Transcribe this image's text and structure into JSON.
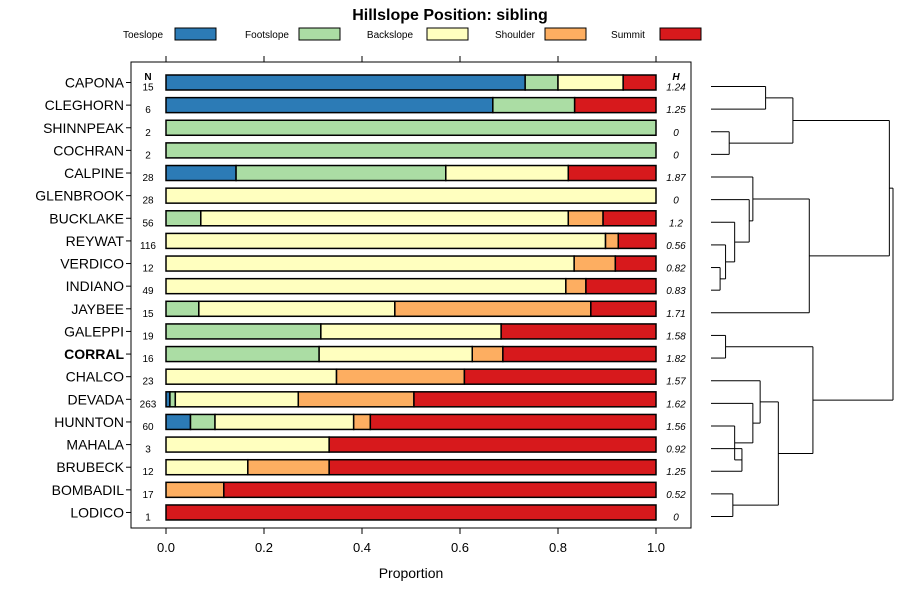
{
  "chart_data": {
    "type": "bar",
    "stacked": true,
    "orientation": "horizontal",
    "title": "Hillslope Position: sibling",
    "xlabel": "Proportion",
    "xlim": [
      0,
      1
    ],
    "xticks": [
      "0.0",
      "0.2",
      "0.4",
      "0.6",
      "0.8",
      "1.0"
    ],
    "n_header": "N",
    "h_header": "H",
    "highlight": "CORRAL",
    "legend": [
      {
        "name": "Toeslope",
        "color": "#2C7BB6"
      },
      {
        "name": "Footslope",
        "color": "#ABDDA4"
      },
      {
        "name": "Backslope",
        "color": "#FFFFBF"
      },
      {
        "name": "Shoulder",
        "color": "#FDAE61"
      },
      {
        "name": "Summit",
        "color": "#D7191C"
      }
    ],
    "categories": [
      {
        "name": "CAPONA",
        "n": "15",
        "h": "1.24",
        "values": [
          0.733,
          0.067,
          0.133,
          0,
          0.067
        ]
      },
      {
        "name": "CLEGHORN",
        "n": "6",
        "h": "1.25",
        "values": [
          0.667,
          0.167,
          0,
          0,
          0.166
        ]
      },
      {
        "name": "SHINNPEAK",
        "n": "2",
        "h": "0",
        "values": [
          0,
          1,
          0,
          0,
          0
        ]
      },
      {
        "name": "COCHRAN",
        "n": "2",
        "h": "0",
        "values": [
          0,
          1,
          0,
          0,
          0
        ]
      },
      {
        "name": "CALPINE",
        "n": "28",
        "h": "1.87",
        "values": [
          0.143,
          0.428,
          0.25,
          0,
          0.179
        ]
      },
      {
        "name": "GLENBROOK",
        "n": "28",
        "h": "0",
        "values": [
          0,
          0,
          1,
          0,
          0
        ]
      },
      {
        "name": "BUCKLAKE",
        "n": "56",
        "h": "1.2",
        "values": [
          0,
          0.071,
          0.75,
          0.071,
          0.108
        ]
      },
      {
        "name": "REYWAT",
        "n": "116",
        "h": "0.56",
        "values": [
          0,
          0,
          0.897,
          0.026,
          0.077
        ]
      },
      {
        "name": "VERDICO",
        "n": "12",
        "h": "0.82",
        "values": [
          0,
          0,
          0.833,
          0.084,
          0.083
        ]
      },
      {
        "name": "INDIANO",
        "n": "49",
        "h": "0.83",
        "values": [
          0,
          0,
          0.816,
          0.041,
          0.143
        ]
      },
      {
        "name": "JAYBEE",
        "n": "15",
        "h": "1.71",
        "values": [
          0,
          0.067,
          0.4,
          0.4,
          0.133
        ]
      },
      {
        "name": "GALEPPI",
        "n": "19",
        "h": "1.58",
        "values": [
          0,
          0.316,
          0.368,
          0,
          0.316
        ]
      },
      {
        "name": "CORRAL",
        "n": "16",
        "h": "1.82",
        "values": [
          0,
          0.3125,
          0.3125,
          0.0625,
          0.3125
        ]
      },
      {
        "name": "CHALCO",
        "n": "23",
        "h": "1.57",
        "values": [
          0,
          0,
          0.348,
          0.261,
          0.391
        ]
      },
      {
        "name": "DEVADA",
        "n": "263",
        "h": "1.62",
        "values": [
          0.008,
          0.011,
          0.251,
          0.236,
          0.494
        ]
      },
      {
        "name": "HUNNTON",
        "n": "60",
        "h": "1.56",
        "values": [
          0.05,
          0.05,
          0.283,
          0.034,
          0.583
        ]
      },
      {
        "name": "MAHALA",
        "n": "3",
        "h": "0.92",
        "values": [
          0,
          0,
          0.333,
          0,
          0.667
        ]
      },
      {
        "name": "BRUBECK",
        "n": "12",
        "h": "1.25",
        "values": [
          0,
          0,
          0.167,
          0.166,
          0.667
        ]
      },
      {
        "name": "BOMBADIL",
        "n": "17",
        "h": "0.52",
        "values": [
          0,
          0,
          0,
          0.118,
          0.882
        ]
      },
      {
        "name": "LODICO",
        "n": "1",
        "h": "0",
        "values": [
          0,
          0,
          0,
          0,
          1
        ]
      }
    ],
    "dendrogram": {
      "description": "hierarchical clustering of rows (leaf order matches categories)",
      "merges": [
        {
          "a": 0,
          "b": 1,
          "height": 0.3
        },
        {
          "a": 2,
          "b": 3,
          "height": 0.1
        },
        {
          "a": "m0",
          "b": "m1",
          "height": 0.45
        },
        {
          "a": 8,
          "b": 9,
          "height": 0.05
        },
        {
          "a": 7,
          "b": "m3",
          "height": 0.08
        },
        {
          "a": 6,
          "b": "m4",
          "height": 0.13
        },
        {
          "a": 5,
          "b": "m5",
          "height": 0.21
        },
        {
          "a": 4,
          "b": "m6",
          "height": 0.23
        },
        {
          "a": 10,
          "b": "m7",
          "height": 0.54
        },
        {
          "a": "m2",
          "b": "m8",
          "height": 0.98
        },
        {
          "a": 11,
          "b": 12,
          "height": 0.08
        },
        {
          "a": 16,
          "b": 17,
          "height": 0.17
        },
        {
          "a": 15,
          "b": "m11",
          "height": 0.13
        },
        {
          "a": 14,
          "b": "m12",
          "height": 0.23
        },
        {
          "a": 13,
          "b": "m13",
          "height": 0.27
        },
        {
          "a": 18,
          "b": 19,
          "height": 0.12
        },
        {
          "a": "m14",
          "b": "m15",
          "height": 0.37
        },
        {
          "a": "m10",
          "b": "m16",
          "height": 0.56
        },
        {
          "a": "m9",
          "b": "m17",
          "height": 1.0
        }
      ]
    }
  }
}
